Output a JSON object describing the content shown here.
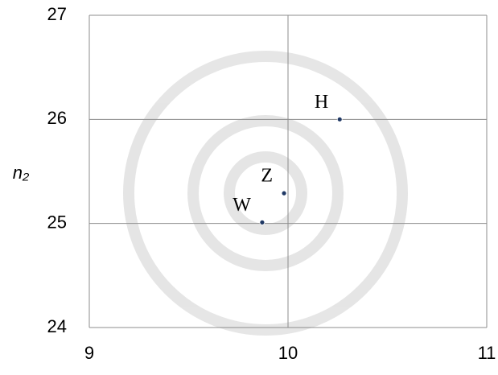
{
  "chart_data": {
    "type": "scatter",
    "y_label": "n₂",
    "x": [
      10.26,
      9.98,
      9.87
    ],
    "values": [
      26.0,
      25.29,
      25.01
    ],
    "labels": [
      "H",
      "Z",
      "W"
    ],
    "color": "#1f3864",
    "xlim": [
      9,
      11
    ],
    "xticks": [
      9,
      10,
      11
    ],
    "ylim": [
      24,
      27
    ],
    "yticks": [
      24,
      25,
      26,
      27
    ],
    "grid": true
  }
}
